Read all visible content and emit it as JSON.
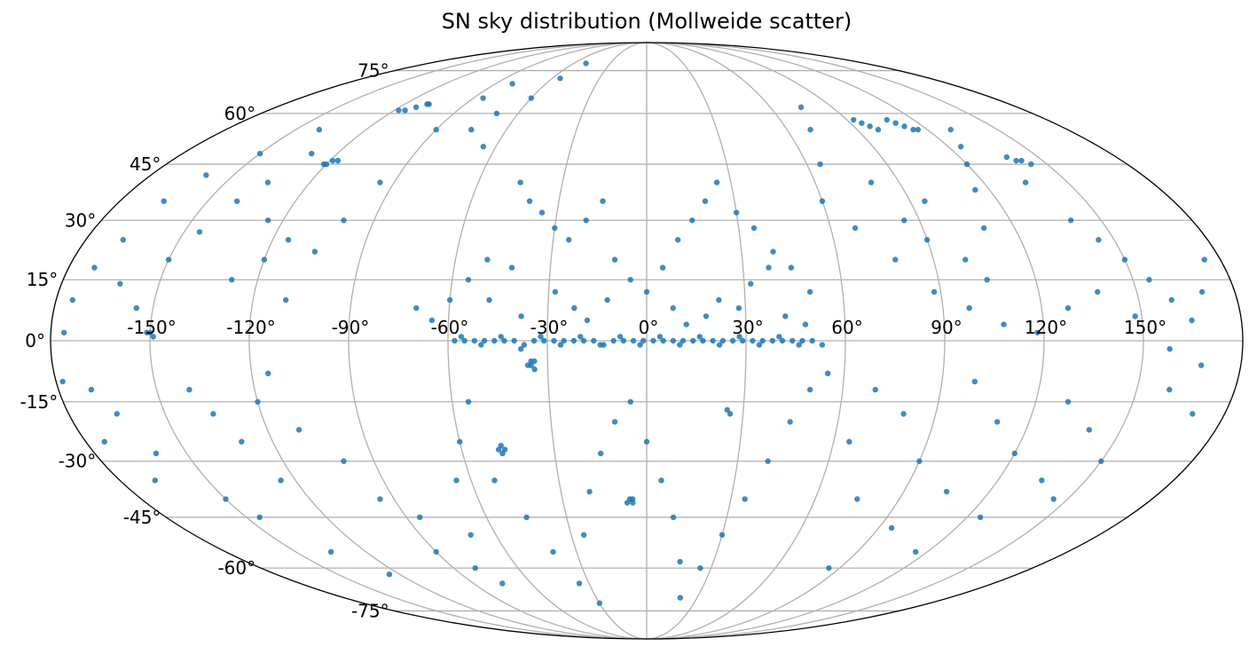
{
  "chart_data": {
    "type": "scatter",
    "projection": "mollweide",
    "title": "SN sky distribution (Mollweide scatter)",
    "xlabel": "",
    "ylabel": "",
    "grid": true,
    "colors": {
      "points": "#1f77b4",
      "grid": "#b0b0b0",
      "frame": "#000000"
    },
    "xlim": [
      -180,
      180
    ],
    "ylim": [
      -90,
      90
    ],
    "x_ticks": [
      {
        "value": -150,
        "label": "-150°"
      },
      {
        "value": -120,
        "label": "-120°"
      },
      {
        "value": -90,
        "label": "-90°"
      },
      {
        "value": -60,
        "label": "-60°"
      },
      {
        "value": -30,
        "label": "-30°"
      },
      {
        "value": 0,
        "label": "0°"
      },
      {
        "value": 30,
        "label": "30°"
      },
      {
        "value": 60,
        "label": "60°"
      },
      {
        "value": 90,
        "label": "90°"
      },
      {
        "value": 120,
        "label": "120°"
      },
      {
        "value": 150,
        "label": "150°"
      }
    ],
    "y_ticks": [
      {
        "value": 75,
        "label": "75°"
      },
      {
        "value": 60,
        "label": "60°"
      },
      {
        "value": 45,
        "label": "45°"
      },
      {
        "value": 30,
        "label": "30°"
      },
      {
        "value": 15,
        "label": "15°"
      },
      {
        "value": 0,
        "label": "0°"
      },
      {
        "value": -15,
        "label": "-15°"
      },
      {
        "value": -30,
        "label": "-30°"
      },
      {
        "value": -45,
        "label": "-45°"
      },
      {
        "value": -60,
        "label": "-60°"
      },
      {
        "value": -75,
        "label": "-75°"
      }
    ],
    "series": [
      {
        "points": [
          [
            -58,
            0
          ],
          [
            -55,
            0
          ],
          [
            -52,
            0
          ],
          [
            -49,
            0
          ],
          [
            -46,
            0
          ],
          [
            -43,
            0
          ],
          [
            -40,
            0
          ],
          [
            -37,
            -1
          ],
          [
            -34,
            0
          ],
          [
            -31,
            0
          ],
          [
            -28,
            0
          ],
          [
            -25,
            0
          ],
          [
            -22,
            0
          ],
          [
            -19,
            0
          ],
          [
            -16,
            0
          ],
          [
            -13,
            -1
          ],
          [
            -10,
            0
          ],
          [
            -7,
            0
          ],
          [
            -4,
            0
          ],
          [
            -1,
            0
          ],
          [
            2,
            0
          ],
          [
            5,
            0
          ],
          [
            8,
            0
          ],
          [
            11,
            0
          ],
          [
            14,
            0
          ],
          [
            17,
            0
          ],
          [
            20,
            0
          ],
          [
            23,
            0
          ],
          [
            26,
            0
          ],
          [
            29,
            0
          ],
          [
            32,
            0
          ],
          [
            35,
            0
          ],
          [
            38,
            0
          ],
          [
            41,
            0
          ],
          [
            44,
            0
          ],
          [
            47,
            0
          ],
          [
            50,
            0
          ],
          [
            53,
            -1
          ],
          [
            -56,
            1
          ],
          [
            -50,
            -1
          ],
          [
            -44,
            1
          ],
          [
            -38,
            -2
          ],
          [
            -32,
            1
          ],
          [
            -26,
            -1
          ],
          [
            -20,
            1
          ],
          [
            -14,
            -1
          ],
          [
            -8,
            1
          ],
          [
            -2,
            -1
          ],
          [
            4,
            1
          ],
          [
            10,
            -1
          ],
          [
            16,
            1
          ],
          [
            22,
            -1
          ],
          [
            28,
            1
          ],
          [
            34,
            -1
          ],
          [
            40,
            1
          ],
          [
            46,
            -1
          ],
          [
            -35,
            -5
          ],
          [
            -35,
            -6
          ],
          [
            -34,
            -7
          ],
          [
            -36,
            -6
          ],
          [
            -34,
            -5
          ],
          [
            -47,
            -26
          ],
          [
            -48,
            -27
          ],
          [
            -46,
            -27
          ],
          [
            -47,
            -28
          ],
          [
            -6,
            -40
          ],
          [
            -5,
            -41
          ],
          [
            -7,
            -41
          ],
          [
            -5,
            -40
          ],
          [
            25,
            -17
          ],
          [
            26,
            -18
          ],
          [
            -150,
            2
          ],
          [
            -151,
            2
          ],
          [
            -149,
            1
          ],
          [
            -115,
            61
          ],
          [
            -112,
            62
          ],
          [
            -109,
            63
          ],
          [
            -108,
            63
          ],
          [
            -118,
            61
          ],
          [
            -120,
            45
          ],
          [
            -119,
            46
          ],
          [
            -117,
            46
          ],
          [
            -121,
            45
          ],
          [
            112,
            56
          ],
          [
            110,
            57
          ],
          [
            108,
            58
          ],
          [
            114,
            55
          ],
          [
            116,
            55
          ],
          [
            95,
            57
          ],
          [
            97,
            56
          ],
          [
            99,
            55
          ],
          [
            93,
            58
          ],
          [
            138,
            47
          ],
          [
            140,
            46
          ],
          [
            142,
            46
          ],
          [
            144,
            45
          ],
          [
            -176,
            2
          ],
          [
            -170,
            -12
          ],
          [
            -165,
            -18
          ],
          [
            -160,
            -28
          ],
          [
            -172,
            18
          ],
          [
            -168,
            25
          ],
          [
            -162,
            14
          ],
          [
            -155,
            8
          ],
          [
            -150,
            20
          ],
          [
            -145,
            27
          ],
          [
            -140,
            35
          ],
          [
            -135,
            40
          ],
          [
            -130,
            48
          ],
          [
            -125,
            30
          ],
          [
            -128,
            15
          ],
          [
            -120,
            20
          ],
          [
            -115,
            25
          ],
          [
            -110,
            10
          ],
          [
            -105,
            22
          ],
          [
            -100,
            30
          ],
          [
            -95,
            40
          ],
          [
            -90,
            55
          ],
          [
            -85,
            65
          ],
          [
            -80,
            70
          ],
          [
            -75,
            55
          ],
          [
            -70,
            60
          ],
          [
            -65,
            50
          ],
          [
            -60,
            65
          ],
          [
            -55,
            72
          ],
          [
            -50,
            78
          ],
          [
            -140,
            -12
          ],
          [
            -135,
            -18
          ],
          [
            -130,
            -25
          ],
          [
            -125,
            -35
          ],
          [
            -120,
            -15
          ],
          [
            -115,
            -8
          ],
          [
            -110,
            -22
          ],
          [
            -100,
            -30
          ],
          [
            -95,
            -40
          ],
          [
            -90,
            -55
          ],
          [
            -85,
            -45
          ],
          [
            -80,
            -60
          ],
          [
            -75,
            -65
          ],
          [
            -70,
            -50
          ],
          [
            -65,
            -35
          ],
          [
            -60,
            -25
          ],
          [
            -55,
            -15
          ],
          [
            -52,
            -35
          ],
          [
            -45,
            -45
          ],
          [
            -40,
            -55
          ],
          [
            -35,
            -65
          ],
          [
            -30,
            -72
          ],
          [
            -25,
            -50
          ],
          [
            -20,
            -38
          ],
          [
            -15,
            -28
          ],
          [
            -10,
            -20
          ],
          [
            -5,
            -15
          ],
          [
            0,
            -25
          ],
          [
            5,
            -35
          ],
          [
            10,
            -45
          ],
          [
            15,
            -58
          ],
          [
            20,
            -70
          ],
          [
            25,
            -60
          ],
          [
            30,
            -50
          ],
          [
            35,
            -40
          ],
          [
            40,
            -30
          ],
          [
            45,
            -20
          ],
          [
            50,
            -12
          ],
          [
            55,
            -8
          ],
          [
            -45,
            40
          ],
          [
            -40,
            35
          ],
          [
            -35,
            32
          ],
          [
            -30,
            28
          ],
          [
            -25,
            25
          ],
          [
            -20,
            30
          ],
          [
            -15,
            35
          ],
          [
            -10,
            20
          ],
          [
            -5,
            15
          ],
          [
            0,
            12
          ],
          [
            5,
            18
          ],
          [
            10,
            25
          ],
          [
            15,
            30
          ],
          [
            20,
            35
          ],
          [
            25,
            40
          ],
          [
            30,
            32
          ],
          [
            35,
            28
          ],
          [
            40,
            22
          ],
          [
            45,
            18
          ],
          [
            50,
            12
          ],
          [
            -50,
            20
          ],
          [
            -55,
            15
          ],
          [
            -60,
            10
          ],
          [
            -65,
            5
          ],
          [
            -70,
            8
          ],
          [
            -48,
            10
          ],
          [
            -42,
            18
          ],
          [
            -38,
            6
          ],
          [
            -28,
            12
          ],
          [
            -22,
            8
          ],
          [
            -18,
            5
          ],
          [
            -12,
            10
          ],
          [
            8,
            8
          ],
          [
            12,
            4
          ],
          [
            18,
            6
          ],
          [
            22,
            10
          ],
          [
            28,
            8
          ],
          [
            32,
            14
          ],
          [
            38,
            18
          ],
          [
            42,
            6
          ],
          [
            48,
            4
          ],
          [
            60,
            35
          ],
          [
            65,
            45
          ],
          [
            70,
            55
          ],
          [
            75,
            62
          ],
          [
            80,
            40
          ],
          [
            85,
            30
          ],
          [
            90,
            25
          ],
          [
            95,
            35
          ],
          [
            100,
            20
          ],
          [
            105,
            15
          ],
          [
            110,
            28
          ],
          [
            115,
            38
          ],
          [
            120,
            45
          ],
          [
            125,
            50
          ],
          [
            130,
            55
          ],
          [
            135,
            40
          ],
          [
            140,
            30
          ],
          [
            145,
            25
          ],
          [
            150,
            20
          ],
          [
            155,
            15
          ],
          [
            160,
            10
          ],
          [
            165,
            5
          ],
          [
            170,
            12
          ],
          [
            175,
            20
          ],
          [
            68,
            28
          ],
          [
            78,
            20
          ],
          [
            88,
            12
          ],
          [
            98,
            8
          ],
          [
            108,
            4
          ],
          [
            118,
            2
          ],
          [
            128,
            8
          ],
          [
            138,
            12
          ],
          [
            148,
            6
          ],
          [
            158,
            -2
          ],
          [
            168,
            -6
          ],
          [
            100,
            -10
          ],
          [
            110,
            -20
          ],
          [
            120,
            -28
          ],
          [
            130,
            -15
          ],
          [
            140,
            -22
          ],
          [
            150,
            -30
          ],
          [
            160,
            -12
          ],
          [
            170,
            -18
          ],
          [
            135,
            -35
          ],
          [
            145,
            -40
          ],
          [
            125,
            -45
          ],
          [
            115,
            -55
          ],
          [
            105,
            -38
          ],
          [
            95,
            -48
          ],
          [
            90,
            -30
          ],
          [
            80,
            -18
          ],
          [
            70,
            -12
          ],
          [
            65,
            -25
          ],
          [
            75,
            -40
          ],
          [
            85,
            -60
          ],
          [
            -178,
            -10
          ],
          [
            -174,
            -25
          ],
          [
            -168,
            -35
          ],
          [
            -150,
            -40
          ],
          [
            -145,
            -45
          ],
          [
            -135,
            -55
          ],
          [
            -125,
            -62
          ],
          [
            -140,
            55
          ],
          [
            -150,
            48
          ],
          [
            -160,
            42
          ],
          [
            -165,
            35
          ],
          [
            -175,
            10
          ]
        ]
      }
    ]
  }
}
